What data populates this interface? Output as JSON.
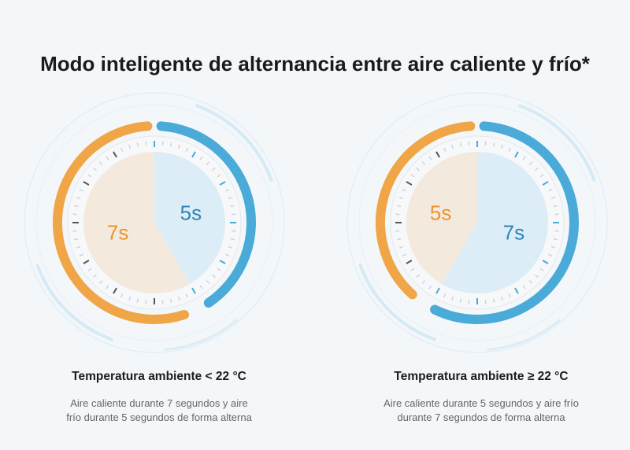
{
  "title": "Modo inteligente de alternancia entre aire caliente y frío*",
  "colors": {
    "warm": "#f0a547",
    "warm_light": "#f7c785",
    "warm_fill": "#f4e9dd",
    "cool": "#4aaad8",
    "cool_light": "#8dcfee",
    "cool_fill": "#dcedf7",
    "warm_text": "#e8952e",
    "cool_text": "#2e86b3"
  },
  "dials": [
    {
      "warm_seconds": 7,
      "cool_seconds": 5,
      "warm_label": "7s",
      "cool_label": "5s",
      "heading": "Temperatura ambiente < 22 °C",
      "description_line1": "Aire caliente durante 7 segundos y aire",
      "description_line2": "frío durante 5 segundos de forma alterna"
    },
    {
      "warm_seconds": 5,
      "cool_seconds": 7,
      "warm_label": "5s",
      "cool_label": "7s",
      "heading": "Temperatura ambiente ≥ 22 °C",
      "description_line1": "Aire caliente durante 5 segundos y aire frío",
      "description_line2": "durante 7 segundos de forma alterna"
    }
  ]
}
